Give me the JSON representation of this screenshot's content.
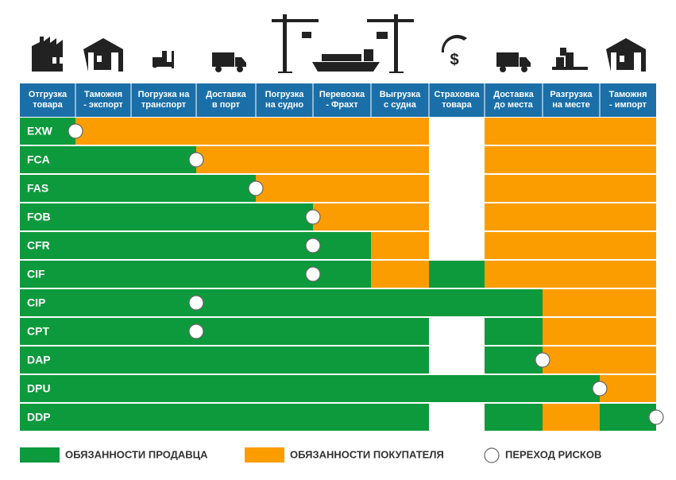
{
  "columns": [
    [
      "Отгрузка",
      "товара"
    ],
    [
      "Таможня",
      "- экспорт"
    ],
    [
      "Погрузка на",
      "транспорт"
    ],
    [
      "Доставка",
      "в порт"
    ],
    [
      "Погрузка",
      "на судно"
    ],
    [
      "Перевозка",
      "- Фрахт"
    ],
    [
      "Выгрузка",
      "с судна"
    ],
    [
      "Страховка",
      "товара"
    ],
    [
      "Доставка",
      "до места"
    ],
    [
      "Разгрузка",
      "на месте"
    ],
    [
      "Таможня",
      "- импорт"
    ]
  ],
  "colors": {
    "S": "#0d9a3c",
    "B": "#fb9d00",
    "-": "#ffffff",
    "header": "#1b6fa8"
  },
  "rows": [
    {
      "label": "EXW",
      "cells": [
        "S",
        "B",
        "B",
        "B",
        "B",
        "B",
        "B",
        "-",
        "B",
        "B",
        "B"
      ],
      "risk": 1
    },
    {
      "label": "FCA",
      "cells": [
        "S",
        "S",
        "S",
        "B",
        "B",
        "B",
        "B",
        "-",
        "B",
        "B",
        "B"
      ],
      "risk": 3
    },
    {
      "label": "FAS",
      "cells": [
        "S",
        "S",
        "S",
        "S",
        "B",
        "B",
        "B",
        "-",
        "B",
        "B",
        "B"
      ],
      "risk": 4
    },
    {
      "label": "FOB",
      "cells": [
        "S",
        "S",
        "S",
        "S",
        "S",
        "B",
        "B",
        "-",
        "B",
        "B",
        "B"
      ],
      "risk": 5
    },
    {
      "label": "CFR",
      "cells": [
        "S",
        "S",
        "S",
        "S",
        "S",
        "S",
        "B",
        "-",
        "B",
        "B",
        "B"
      ],
      "risk": 5
    },
    {
      "label": "CIF",
      "cells": [
        "S",
        "S",
        "S",
        "S",
        "S",
        "S",
        "B",
        "S",
        "B",
        "B",
        "B"
      ],
      "risk": 5
    },
    {
      "label": "CIP",
      "cells": [
        "S",
        "S",
        "S",
        "S",
        "S",
        "S",
        "S",
        "S",
        "S",
        "B",
        "B"
      ],
      "risk": 3
    },
    {
      "label": "CPT",
      "cells": [
        "S",
        "S",
        "S",
        "S",
        "S",
        "S",
        "S",
        "-",
        "S",
        "B",
        "B"
      ],
      "risk": 3
    },
    {
      "label": "DAP",
      "cells": [
        "S",
        "S",
        "S",
        "S",
        "S",
        "S",
        "S",
        "-",
        "S",
        "B",
        "B"
      ],
      "risk": 9
    },
    {
      "label": "DPU",
      "cells": [
        "S",
        "S",
        "S",
        "S",
        "S",
        "S",
        "S",
        "S",
        "S",
        "S",
        "B"
      ],
      "risk": 10
    },
    {
      "label": "DDP",
      "cells": [
        "S",
        "S",
        "S",
        "S",
        "S",
        "S",
        "S",
        "-",
        "S",
        "B",
        "S"
      ],
      "risk": 11
    }
  ],
  "legend": {
    "seller": "ОБЯЗАННОСТИ ПРОДАВЦА",
    "buyer": "ОБЯЗАННОСТИ ПОКУПАТЕЛЯ",
    "risk": "ПЕРЕХОД РИСКОВ"
  }
}
